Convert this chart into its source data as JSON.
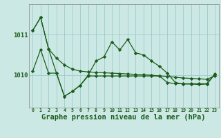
{
  "background_color": "#cce8e4",
  "grid_color": "#99cccc",
  "line_color": "#1a5c1a",
  "xlabel": "Graphe pression niveau de la mer (hPa)",
  "xlabel_fontsize": 7.5,
  "yticks": [
    1010,
    1011
  ],
  "ylim": [
    1009.2,
    1011.75
  ],
  "xlim": [
    -0.5,
    23.5
  ],
  "xtick_labels": [
    "0",
    "1",
    "2",
    "3",
    "4",
    "5",
    "6",
    "7",
    "8",
    "9",
    "10",
    "11",
    "12",
    "13",
    "14",
    "15",
    "16",
    "17",
    "18",
    "19",
    "20",
    "21",
    "22",
    "23"
  ],
  "s1_y": [
    1011.1,
    1011.42,
    1010.65,
    1010.42,
    1010.25,
    1010.15,
    1010.1,
    1010.08,
    1010.07,
    1010.06,
    1010.05,
    1010.04,
    1010.03,
    1010.02,
    1010.01,
    1010.0,
    1009.98,
    1009.97,
    1009.95,
    1009.93,
    1009.92,
    1009.91,
    1009.9,
    1009.98
  ],
  "s2_y": [
    1011.1,
    1011.42,
    1010.65,
    1010.05,
    1009.48,
    1009.6,
    1009.75,
    1010.0,
    1010.35,
    1010.45,
    1010.82,
    1010.62,
    1010.88,
    1010.55,
    1010.5,
    1010.35,
    1010.22,
    1010.05,
    1009.82,
    1009.78,
    1009.78,
    1009.77,
    1009.78,
    1010.02
  ],
  "s3_y": [
    1010.1,
    1010.63,
    1010.05,
    1010.05,
    1009.48,
    1009.6,
    1009.75,
    1009.98,
    1009.98,
    1009.98,
    1009.98,
    1009.98,
    1009.98,
    1009.98,
    1009.98,
    1009.98,
    1009.98,
    1009.82,
    1009.79,
    1009.79,
    1009.79,
    1009.79,
    1009.79,
    1010.03
  ]
}
